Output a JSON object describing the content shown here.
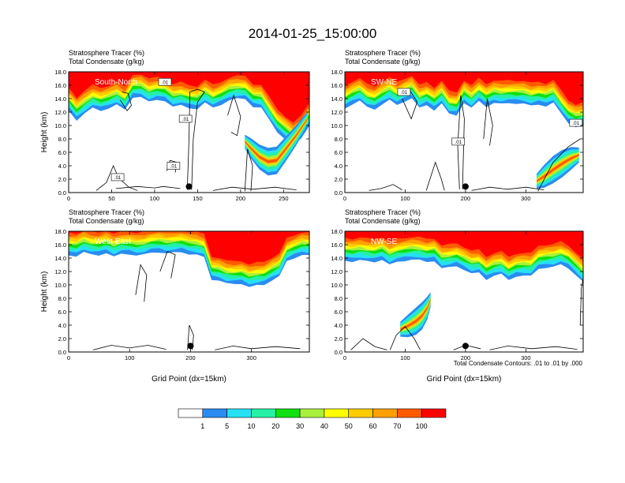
{
  "figure": {
    "title": "2014-01-25_15:00:00",
    "contour_note": "Total Condensate Contours: .01 to .01 by .000"
  },
  "colorbar": {
    "colors": [
      "#ffffff",
      "#2a8cf0",
      "#26e0f5",
      "#24f0a6",
      "#10e010",
      "#a8f03c",
      "#ffff00",
      "#ffcc00",
      "#ffa000",
      "#ff5a00",
      "#ff0000"
    ],
    "labels": [
      "1",
      "5",
      "10",
      "20",
      "30",
      "40",
      "50",
      "60",
      "70",
      "100"
    ]
  },
  "chart_data": [
    {
      "type": "heatmap",
      "panel_label": "South-North",
      "title_line1": "Stratosphere Tracer   (%)",
      "title_line2": "Total Condensate   (g/kg)",
      "ylabel": "Height (km)",
      "xlabel": "",
      "xlim": [
        0,
        280
      ],
      "ylim": [
        0,
        18
      ],
      "xticks": [
        0,
        50,
        100,
        150,
        200,
        250
      ],
      "yticks": [
        "0.0",
        "2.0",
        "4.0",
        "6.0",
        "8.0",
        "10.0",
        "12.0",
        "14.0",
        "16.0",
        "18.0"
      ],
      "marker": {
        "x": 140,
        "y": 0.9
      },
      "contour_labels": [
        {
          "text": ".01",
          "x": 112,
          "y": 16.5
        },
        {
          "text": ".01",
          "x": 136,
          "y": 11.0
        },
        {
          "text": ".01",
          "x": 122,
          "y": 4.0
        },
        {
          "text": ".01",
          "x": 57,
          "y": 2.3
        }
      ],
      "tracer_top_km": [
        12.2,
        10.8,
        11.8,
        12.6,
        12.2,
        12.6,
        13.1,
        12.3,
        14.2,
        14.3,
        13.5,
        13.8,
        13.7,
        12.8,
        13.0,
        12.6,
        12.5,
        13.4,
        12.6,
        13.1,
        13.8,
        14.0,
        13.9,
        12.8,
        12.7,
        10.8,
        9.0,
        8.0,
        7.0,
        8.0,
        10.0
      ],
      "plume": [
        {
          "x": 205,
          "y": 7.6
        },
        {
          "x": 212,
          "y": 6.6
        },
        {
          "x": 222,
          "y": 5.3
        },
        {
          "x": 232,
          "y": 4.6
        },
        {
          "x": 242,
          "y": 4.8
        },
        {
          "x": 252,
          "y": 6.4
        },
        {
          "x": 264,
          "y": 8.4
        },
        {
          "x": 278,
          "y": 11.0
        }
      ],
      "condensate_contours": [
        [
          {
            "x": 138,
            "y": 0.4
          },
          {
            "x": 140,
            "y": 8.0
          },
          {
            "x": 141,
            "y": 15.0
          },
          {
            "x": 150,
            "y": 15.4
          },
          {
            "x": 158,
            "y": 15.0
          },
          {
            "x": 150,
            "y": 13.5
          },
          {
            "x": 145,
            "y": 8.0
          },
          {
            "x": 143,
            "y": 0.4
          }
        ],
        [
          {
            "x": 60,
            "y": 13.8
          },
          {
            "x": 68,
            "y": 12.2
          },
          {
            "x": 73,
            "y": 13.0
          },
          {
            "x": 69,
            "y": 14.8
          },
          {
            "x": 62,
            "y": 15.0
          }
        ],
        [
          {
            "x": 185,
            "y": 11.5
          },
          {
            "x": 192,
            "y": 14.5
          },
          {
            "x": 200,
            "y": 11.3
          },
          {
            "x": 196,
            "y": 8.5
          },
          {
            "x": 189,
            "y": 9.0
          }
        ],
        [
          {
            "x": 32,
            "y": 0.3
          },
          {
            "x": 44,
            "y": 1.5
          },
          {
            "x": 52,
            "y": 4.0
          },
          {
            "x": 58,
            "y": 2.2
          },
          {
            "x": 70,
            "y": 0.8
          },
          {
            "x": 80,
            "y": 0.3
          }
        ],
        [
          {
            "x": 55,
            "y": 0.6
          },
          {
            "x": 80,
            "y": 0.9
          },
          {
            "x": 100,
            "y": 0.7
          },
          {
            "x": 110,
            "y": 0.9
          },
          {
            "x": 130,
            "y": 0.6
          }
        ],
        [
          {
            "x": 114,
            "y": 3.2
          },
          {
            "x": 118,
            "y": 4.8
          },
          {
            "x": 126,
            "y": 4.5
          },
          {
            "x": 124,
            "y": 3.0
          }
        ],
        [
          {
            "x": 168,
            "y": 0.3
          },
          {
            "x": 190,
            "y": 0.8
          },
          {
            "x": 215,
            "y": 0.5
          },
          {
            "x": 240,
            "y": 0.8
          },
          {
            "x": 265,
            "y": 0.4
          }
        ],
        [
          {
            "x": 205,
            "y": 0.2
          },
          {
            "x": 208,
            "y": 6.5
          },
          {
            "x": 214,
            "y": 4.0
          },
          {
            "x": 212,
            "y": 0.2
          }
        ]
      ]
    },
    {
      "type": "heatmap",
      "panel_label": "SW-NE",
      "title_line1": "Stratosphere Tracer   (%)",
      "title_line2": "Total Condensate   (g/kg)",
      "ylabel": "",
      "xlabel": "",
      "xlim": [
        0,
        395
      ],
      "ylim": [
        0,
        18
      ],
      "xticks": [
        0,
        100,
        200,
        300
      ],
      "yticks": [
        "0.0",
        "2.0",
        "4.0",
        "6.0",
        "8.0",
        "10.0",
        "12.0",
        "14.0",
        "16.0",
        "18.0"
      ],
      "marker": {
        "x": 200,
        "y": 0.9
      },
      "contour_labels": [
        {
          "text": ".01",
          "x": 98,
          "y": 15.0
        },
        {
          "text": ".01",
          "x": 188,
          "y": 7.6
        },
        {
          "text": ".01",
          "x": 383,
          "y": 10.4
        }
      ],
      "tracer_top_km": [
        12.5,
        13.2,
        13.7,
        12.7,
        12.4,
        13.2,
        13.8,
        13.0,
        13.6,
        14.1,
        12.6,
        13.0,
        12.3,
        13.3,
        11.7,
        11.5,
        13.4,
        12.6,
        13.6,
        12.8,
        13.4,
        13.2,
        13.3,
        13.3,
        13.3,
        12.9,
        13.1,
        12.9,
        13.4,
        11.8,
        10.4,
        9.8,
        10.0
      ],
      "plume": [
        {
          "x": 318,
          "y": 1.7
        },
        {
          "x": 330,
          "y": 2.4
        },
        {
          "x": 345,
          "y": 3.4
        },
        {
          "x": 360,
          "y": 4.3
        },
        {
          "x": 375,
          "y": 5.1
        },
        {
          "x": 388,
          "y": 5.6
        }
      ],
      "condensate_contours": [
        [
          {
            "x": 190,
            "y": 0.5
          },
          {
            "x": 187,
            "y": 7.0
          },
          {
            "x": 192,
            "y": 14.5
          },
          {
            "x": 198,
            "y": 11.0
          },
          {
            "x": 195,
            "y": 0.5
          }
        ],
        [
          {
            "x": 95,
            "y": 14.0
          },
          {
            "x": 110,
            "y": 11.0
          },
          {
            "x": 120,
            "y": 13.5
          },
          {
            "x": 108,
            "y": 15.2
          }
        ],
        [
          {
            "x": 230,
            "y": 8.0
          },
          {
            "x": 236,
            "y": 14.0
          },
          {
            "x": 245,
            "y": 10.0
          },
          {
            "x": 240,
            "y": 7.0
          }
        ],
        [
          {
            "x": 40,
            "y": 0.3
          },
          {
            "x": 60,
            "y": 0.6
          },
          {
            "x": 80,
            "y": 1.2
          },
          {
            "x": 95,
            "y": 0.4
          }
        ],
        [
          {
            "x": 135,
            "y": 0.3
          },
          {
            "x": 150,
            "y": 4.5
          },
          {
            "x": 160,
            "y": 2.0
          },
          {
            "x": 165,
            "y": 0.3
          }
        ],
        [
          {
            "x": 210,
            "y": 0.3
          },
          {
            "x": 240,
            "y": 0.8
          },
          {
            "x": 270,
            "y": 0.5
          },
          {
            "x": 300,
            "y": 0.8
          },
          {
            "x": 330,
            "y": 0.4
          }
        ],
        [
          {
            "x": 320,
            "y": 0.2
          },
          {
            "x": 345,
            "y": 4.5
          },
          {
            "x": 370,
            "y": 6.8
          },
          {
            "x": 390,
            "y": 8.0
          }
        ]
      ]
    },
    {
      "type": "heatmap",
      "panel_label": "West-East",
      "title_line1": "Stratosphere Tracer   (%)",
      "title_line2": "Total Condensate   (g/kg)",
      "ylabel": "Height (km)",
      "xlabel": "Grid Point (dx=15km)",
      "xlim": [
        0,
        395
      ],
      "ylim": [
        0,
        18
      ],
      "xticks": [
        0,
        100,
        200,
        300
      ],
      "yticks": [
        "0.0",
        "2.0",
        "4.0",
        "6.0",
        "8.0",
        "10.0",
        "12.0",
        "14.0",
        "16.0",
        "18.0"
      ],
      "marker": {
        "x": 200,
        "y": 0.9
      },
      "contour_labels": [],
      "tracer_top_km": [
        14.4,
        14.3,
        14.9,
        14.5,
        14.4,
        14.8,
        14.2,
        14.6,
        14.6,
        14.4,
        14.5,
        14.8,
        14.9,
        14.7,
        14.8,
        14.9,
        14.6,
        14.5,
        14.1,
        10.8,
        10.7,
        10.2,
        10.1,
        10.2,
        9.7,
        9.9,
        10.0,
        10.7,
        11.3,
        13.5,
        14.0,
        14.5,
        14.4
      ],
      "plume": [],
      "condensate_contours": [
        [
          {
            "x": 110,
            "y": 8.5
          },
          {
            "x": 118,
            "y": 13.0
          },
          {
            "x": 128,
            "y": 11.5
          },
          {
            "x": 124,
            "y": 7.5
          }
        ],
        [
          {
            "x": 150,
            "y": 12.0
          },
          {
            "x": 162,
            "y": 15.0
          },
          {
            "x": 175,
            "y": 14.5
          },
          {
            "x": 168,
            "y": 11.0
          }
        ],
        [
          {
            "x": 195,
            "y": 0.3
          },
          {
            "x": 198,
            "y": 4.0
          },
          {
            "x": 205,
            "y": 2.5
          },
          {
            "x": 203,
            "y": 0.3
          }
        ],
        [
          {
            "x": 40,
            "y": 0.3
          },
          {
            "x": 70,
            "y": 1.0
          },
          {
            "x": 100,
            "y": 0.6
          },
          {
            "x": 130,
            "y": 1.0
          },
          {
            "x": 160,
            "y": 0.4
          }
        ],
        [
          {
            "x": 240,
            "y": 0.3
          },
          {
            "x": 270,
            "y": 0.9
          },
          {
            "x": 300,
            "y": 0.5
          },
          {
            "x": 340,
            "y": 0.8
          },
          {
            "x": 380,
            "y": 0.5
          }
        ]
      ]
    },
    {
      "type": "heatmap",
      "panel_label": "NW-SE",
      "title_line1": "Stratosphere Tracer   (%)",
      "title_line2": "Total Condensate   (g/kg)",
      "ylabel": "",
      "xlabel": "Grid Point (dx=15km)",
      "xlim": [
        0,
        395
      ],
      "ylim": [
        0,
        18
      ],
      "xticks": [
        0,
        100,
        200,
        300
      ],
      "yticks": [
        "0.0",
        "2.0",
        "4.0",
        "6.0",
        "8.0",
        "10.0",
        "12.0",
        "14.0",
        "16.0",
        "18.0"
      ],
      "marker": {
        "x": 200,
        "y": 0.9
      },
      "contour_labels": [],
      "tracer_top_km": [
        13.6,
        13.5,
        13.7,
        13.5,
        13.4,
        13.8,
        13.0,
        13.4,
        13.6,
        13.8,
        13.7,
        13.4,
        13.6,
        12.5,
        12.6,
        12.8,
        12.3,
        11.7,
        11.8,
        10.8,
        11.4,
        11.6,
        10.7,
        11.3,
        11.4,
        11.3,
        12.4,
        12.6,
        12.7,
        13.0,
        12.5,
        11.5,
        10.4
      ],
      "plume": [
        {
          "x": 92,
          "y": 3.4
        },
        {
          "x": 105,
          "y": 3.9
        },
        {
          "x": 118,
          "y": 4.6
        },
        {
          "x": 128,
          "y": 5.4
        },
        {
          "x": 137,
          "y": 6.6
        },
        {
          "x": 142,
          "y": 7.8
        }
      ],
      "condensate_contours": [
        [
          {
            "x": 75,
            "y": 0.3
          },
          {
            "x": 85,
            "y": 2.5
          },
          {
            "x": 100,
            "y": 3.8
          },
          {
            "x": 115,
            "y": 2.0
          },
          {
            "x": 125,
            "y": 0.3
          }
        ],
        [
          {
            "x": 180,
            "y": 0.3
          },
          {
            "x": 200,
            "y": 1.0
          },
          {
            "x": 225,
            "y": 0.5
          }
        ],
        [
          {
            "x": 10,
            "y": 0.3
          },
          {
            "x": 30,
            "y": 2.0
          },
          {
            "x": 50,
            "y": 0.8
          },
          {
            "x": 70,
            "y": 0.3
          }
        ],
        [
          {
            "x": 240,
            "y": 0.3
          },
          {
            "x": 270,
            "y": 0.9
          },
          {
            "x": 310,
            "y": 0.5
          },
          {
            "x": 350,
            "y": 0.8
          },
          {
            "x": 385,
            "y": 0.4
          }
        ],
        [
          {
            "x": 390,
            "y": 4.0
          },
          {
            "x": 392,
            "y": 9.5
          },
          {
            "x": 395,
            "y": 11.0
          }
        ]
      ]
    }
  ]
}
